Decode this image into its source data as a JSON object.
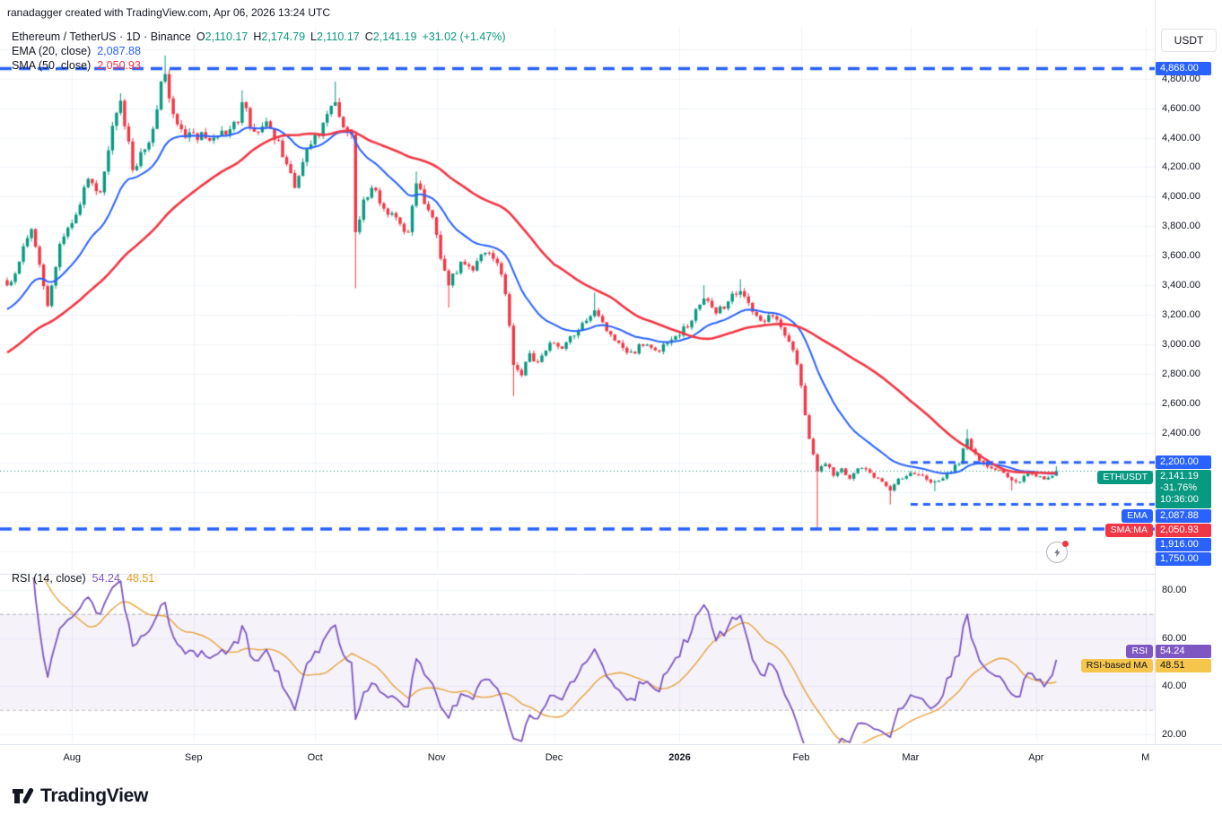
{
  "attribution": "ranadagger created with TradingView.com, Apr 06, 2026 13:24 UTC",
  "header": {
    "title": "Ethereum / TetherUS · 1D · Binance",
    "ohlc": [
      {
        "k": "O",
        "v": "2,110.17"
      },
      {
        "k": "H",
        "v": "2,174.79"
      },
      {
        "k": "L",
        "v": "2,110.17"
      },
      {
        "k": "C",
        "v": "2,141.19"
      }
    ],
    "change": "+31.02 (+1.47%)"
  },
  "legend": {
    "ema_label": "EMA (20, close)",
    "ema_value": "2,087.88",
    "sma_label": "SMA (50, close)",
    "sma_value": "2,050.93",
    "rsi_label": "RSI (14, close)",
    "rsi_value": "54.24",
    "rsi_ma_value": "48.51"
  },
  "price_axis": {
    "currency": "USDT",
    "ticks": [
      4800,
      4600,
      4400,
      4200,
      4000,
      3800,
      3600,
      3400,
      3200,
      3000,
      2800,
      2600,
      2400
    ],
    "badges": [
      {
        "name": "ath-level-badge",
        "price": 4868.0,
        "label": "4,868.00",
        "style": "blue"
      },
      {
        "name": "resistance-level-badge",
        "price": 2200.0,
        "label": "2,200.00",
        "style": "blue"
      },
      {
        "name": "last-price-badge",
        "price": 2141.19,
        "lines": [
          "2,141.19",
          "-31.76%",
          "10:36:00"
        ],
        "style": "teal",
        "tag": "ETHUSDT"
      },
      {
        "name": "ema-value-badge",
        "price": 2087.88,
        "label": "2,087.88",
        "style": "blue",
        "tag": "EMA"
      },
      {
        "name": "sma-value-badge",
        "price": 2050.93,
        "label": "2,050.93",
        "style": "red",
        "tag": "SMA:MA"
      },
      {
        "name": "support-level-badge",
        "price": 1916.0,
        "label": "1,916.00",
        "style": "blue"
      },
      {
        "name": "lower-level-badge",
        "price": 1750.0,
        "label": "1,750.00",
        "style": "blue"
      }
    ]
  },
  "rsi_axis": {
    "ticks": [
      80,
      60,
      40,
      20
    ],
    "badges": [
      {
        "name": "rsi-value-badge",
        "value": 54.24,
        "label": "54.24",
        "style": "purple",
        "tag": "RSI"
      },
      {
        "name": "rsi-ma-value-badge",
        "value": 48.51,
        "label": "48.51",
        "style": "yellow",
        "tag": "RSI-based MA"
      }
    ]
  },
  "time_axis": {
    "labels": [
      {
        "label": "Aug",
        "day": 16
      },
      {
        "label": "Sep",
        "day": 46
      },
      {
        "label": "Oct",
        "day": 76
      },
      {
        "label": "Nov",
        "day": 106
      },
      {
        "label": "Dec",
        "day": 135
      },
      {
        "label": "2026",
        "day": 166,
        "bold": true
      },
      {
        "label": "Feb",
        "day": 196
      },
      {
        "label": "Mar",
        "day": 223
      },
      {
        "label": "Apr",
        "day": 254
      },
      {
        "label": "M",
        "day": 281
      }
    ]
  },
  "footer": {
    "brand": "TradingView"
  },
  "colors": {
    "up": "#089981",
    "down": "#F23645",
    "ema": "#2962FF",
    "sma": "#F23645",
    "level": "#2962FF",
    "last_price_line": "#089981",
    "rsi": "#7E57C2",
    "rsi_ma": "#E8A33C",
    "rsi_band_fill": "rgba(126,87,194,0.08)",
    "rsi_band_line": "rgba(120,123,134,0.5)",
    "grid": "#F0F3FA",
    "axis_border": "#E0E3EB",
    "badge_blue": "#2962FF",
    "badge_teal": "#089981",
    "badge_red": "#F23645",
    "badge_purple": "#7E57C2",
    "badge_yellow": "#F6C54B"
  },
  "chart_data": {
    "type": "candlestick",
    "symbol": "ETHUSDT",
    "exchange": "Binance",
    "interval": "1D",
    "title": "Ethereum / TetherUS",
    "last_bar_date": "2026-04-06",
    "last_candle": {
      "open": 2110.17,
      "high": 2174.79,
      "low": 2110.17,
      "close": 2141.19,
      "change": 31.02,
      "change_pct": 1.47
    },
    "indicators": {
      "ema20": 2087.88,
      "sma50": 2050.93,
      "rsi14": 54.24,
      "rsi14_ma": 48.51
    },
    "horizontal_levels": [
      {
        "price": 4868.0,
        "span": "full"
      },
      {
        "price": 2200.0,
        "span": "right"
      },
      {
        "price": 1916.0,
        "span": "right"
      },
      {
        "price": 1750.0,
        "span": "full"
      }
    ],
    "y_axis": {
      "min": 1470,
      "max": 5150,
      "tick_step": 200
    },
    "rsi_pane": {
      "upper_band": 70,
      "lower_band": 30,
      "y_ticks": [
        80,
        60,
        40,
        20
      ]
    },
    "x_axis": {
      "start": "2025-07-16",
      "end": "2026-05-02",
      "visible_months": [
        "Aug",
        "Sep",
        "Oct",
        "Nov",
        "Dec",
        "2026",
        "Feb",
        "Mar",
        "Apr",
        "M"
      ]
    },
    "series_anchors": [
      [
        0,
        3400
      ],
      [
        3,
        3560
      ],
      [
        6,
        3780
      ],
      [
        8,
        3540
      ],
      [
        10,
        3260
      ],
      [
        13,
        3680
      ],
      [
        16,
        3820
      ],
      [
        20,
        4120
      ],
      [
        23,
        4030
      ],
      [
        26,
        4480
      ],
      [
        28,
        4650,
        4700,
        null
      ],
      [
        31,
        4180
      ],
      [
        34,
        4320
      ],
      [
        36,
        4460
      ],
      [
        38,
        4780
      ],
      [
        39,
        4830,
        4956,
        null
      ],
      [
        41,
        4560
      ],
      [
        44,
        4400
      ],
      [
        46,
        4430
      ],
      [
        50,
        4380
      ],
      [
        54,
        4420
      ],
      [
        57,
        4500
      ],
      [
        58,
        4640,
        4720,
        null
      ],
      [
        61,
        4440
      ],
      [
        64,
        4510
      ],
      [
        67,
        4380
      ],
      [
        69,
        4220
      ],
      [
        71,
        4060
      ],
      [
        74,
        4330
      ],
      [
        77,
        4410
      ],
      [
        79,
        4560
      ],
      [
        81,
        4640,
        4780,
        null
      ],
      [
        83,
        4470
      ],
      [
        85,
        4420
      ],
      [
        86,
        3760,
        null,
        3380
      ],
      [
        88,
        3980
      ],
      [
        90,
        4060
      ],
      [
        93,
        3920
      ],
      [
        96,
        3860
      ],
      [
        99,
        3760
      ],
      [
        101,
        4090,
        4170,
        null
      ],
      [
        103,
        3950
      ],
      [
        105,
        3860
      ],
      [
        107,
        3580
      ],
      [
        109,
        3400,
        null,
        3250
      ],
      [
        112,
        3560
      ],
      [
        115,
        3500
      ],
      [
        118,
        3620
      ],
      [
        121,
        3550
      ],
      [
        123,
        3340
      ],
      [
        125,
        2860,
        null,
        2650
      ],
      [
        127,
        2790
      ],
      [
        129,
        2940
      ],
      [
        131,
        2880
      ],
      [
        134,
        3010
      ],
      [
        137,
        2970
      ],
      [
        140,
        3060
      ],
      [
        143,
        3160
      ],
      [
        145,
        3230,
        3350,
        null
      ],
      [
        148,
        3090
      ],
      [
        151,
        3010
      ],
      [
        154,
        2950
      ],
      [
        157,
        2990
      ],
      [
        160,
        2960
      ],
      [
        163,
        3010
      ],
      [
        166,
        3060
      ],
      [
        169,
        3160
      ],
      [
        172,
        3310,
        3400,
        null
      ],
      [
        175,
        3210
      ],
      [
        178,
        3290
      ],
      [
        181,
        3360,
        3440,
        null
      ],
      [
        183,
        3280
      ],
      [
        186,
        3160
      ],
      [
        189,
        3190
      ],
      [
        192,
        3060
      ],
      [
        194,
        2960
      ],
      [
        196,
        2720
      ],
      [
        197,
        2520
      ],
      [
        198,
        2360
      ],
      [
        200,
        2140,
        null,
        1745
      ],
      [
        202,
        2190
      ],
      [
        204,
        2110
      ],
      [
        206,
        2160
      ],
      [
        208,
        2090
      ],
      [
        210,
        2160
      ],
      [
        213,
        2130
      ],
      [
        216,
        2070
      ],
      [
        218,
        2010,
        null,
        1916
      ],
      [
        220,
        2090
      ],
      [
        223,
        2130
      ],
      [
        226,
        2110
      ],
      [
        229,
        2070,
        null,
        2005
      ],
      [
        232,
        2130
      ],
      [
        235,
        2190
      ],
      [
        237,
        2360,
        2425,
        null
      ],
      [
        239,
        2260
      ],
      [
        241,
        2190
      ],
      [
        243,
        2160
      ],
      [
        246,
        2130
      ],
      [
        248,
        2080,
        null,
        2010
      ],
      [
        250,
        2070
      ],
      [
        252,
        2125
      ],
      [
        254,
        2105
      ],
      [
        256,
        2085
      ],
      [
        258,
        2108
      ],
      [
        259,
        2141.19,
        2174.79,
        2110.17
      ]
    ]
  }
}
